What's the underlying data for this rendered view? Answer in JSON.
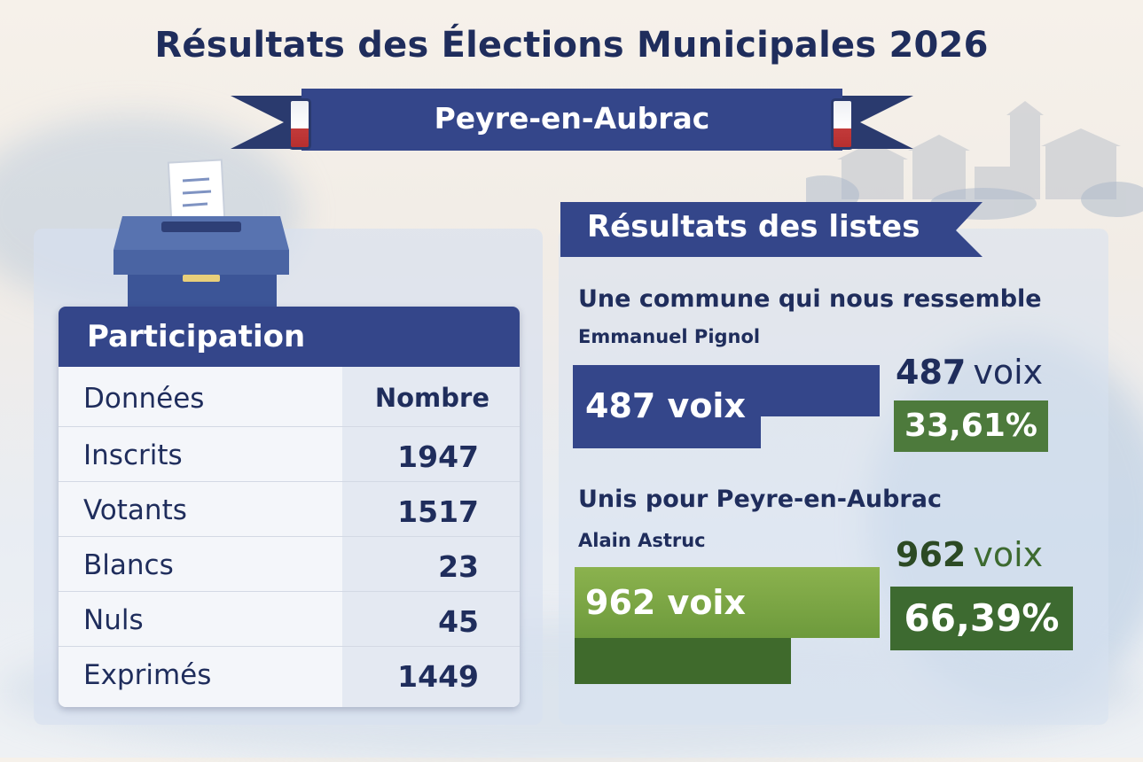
{
  "title": "Résultats des Élections Municipales 2026",
  "commune": "Peyre-en-Aubrac",
  "participation": {
    "heading": "Participation",
    "col_label": "Données",
    "col_value": "Nombre",
    "rows": [
      {
        "label": "Inscrits",
        "value": "1947"
      },
      {
        "label": "Votants",
        "value": "1517"
      },
      {
        "label": "Blancs",
        "value": "23"
      },
      {
        "label": "Nuls",
        "value": "45"
      },
      {
        "label": "Exprimés",
        "value": "1449"
      }
    ]
  },
  "results": {
    "heading": "Résultats des listes",
    "lists": [
      {
        "name": "Une commune qui nous ressemble",
        "head": "Emmanuel Pignol",
        "bar_label": "487 voix",
        "votes_number": "487",
        "votes_unit": "voix",
        "percent": "33,61%",
        "share": 0.3361,
        "bar_color": "#34468a",
        "pct_color": "#4d7a3c"
      },
      {
        "name": "Unis pour Peyre-en-Aubrac",
        "head": "Alain Astruc",
        "bar_label": "962 voix",
        "votes_number": "962",
        "votes_unit": "voix",
        "percent": "66,39%",
        "share": 0.6639,
        "bar_color": "#7aa343",
        "pct_color": "#3d6a30"
      }
    ]
  },
  "colors": {
    "navy": "#1f2d5c",
    "banner_blue": "#34468a",
    "green_dark": "#3d6a30"
  }
}
